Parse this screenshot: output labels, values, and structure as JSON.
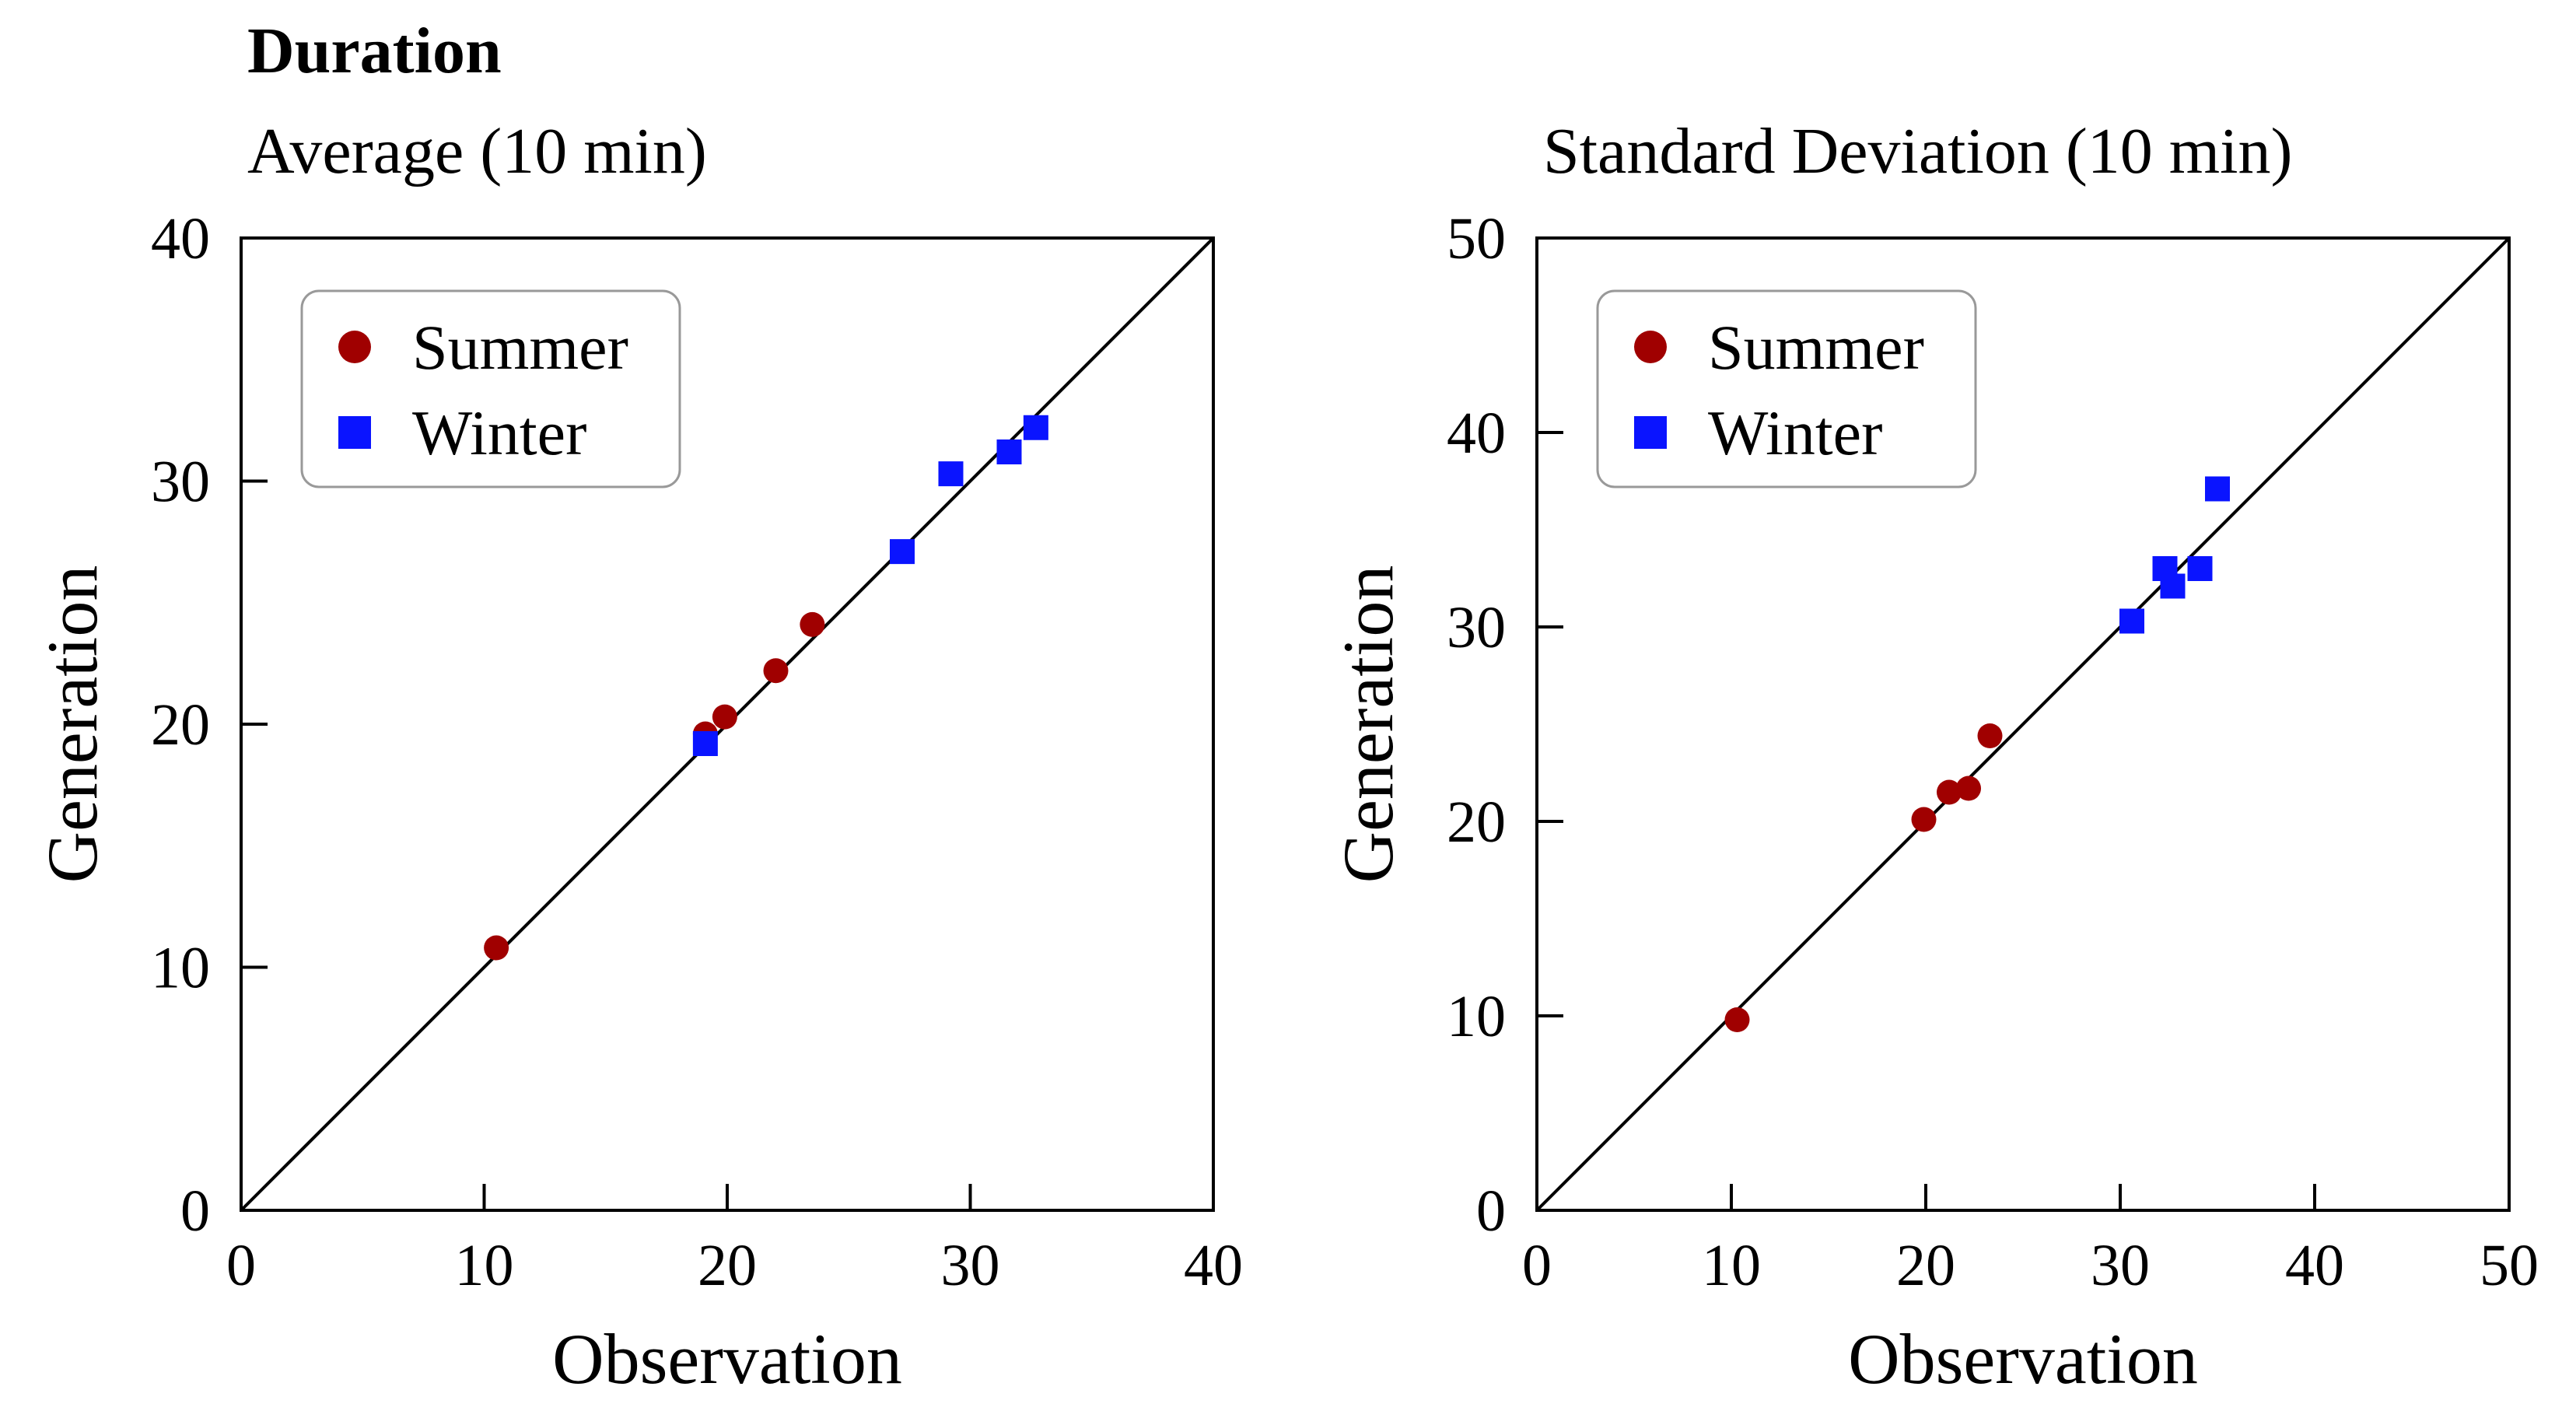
{
  "figure": {
    "heading": "Duration"
  },
  "chart_data": [
    {
      "type": "scatter",
      "title": "Average (10 min)",
      "xlabel": "Observation",
      "ylabel": "Generation",
      "xlim": [
        0,
        40
      ],
      "ylim": [
        0,
        40
      ],
      "xticks": [
        0,
        10,
        20,
        30,
        40
      ],
      "yticks": [
        0,
        10,
        20,
        30,
        40
      ],
      "reference_line": "y = x",
      "grid": false,
      "legend_position": "top-left",
      "series": [
        {
          "name": "Summer",
          "marker": "circle",
          "color": "#A00000",
          "points": [
            [
              10.5,
              10.8
            ],
            [
              19.1,
              19.6
            ],
            [
              19.9,
              20.3
            ],
            [
              22.0,
              22.2
            ],
            [
              23.5,
              24.1
            ]
          ]
        },
        {
          "name": "Winter",
          "marker": "square",
          "color": "#0A14FF",
          "points": [
            [
              19.1,
              19.2
            ],
            [
              27.2,
              27.1
            ],
            [
              29.2,
              30.3
            ],
            [
              31.6,
              31.2
            ],
            [
              32.7,
              32.2
            ]
          ]
        }
      ]
    },
    {
      "type": "scatter",
      "title": "Standard Deviation (10 min)",
      "xlabel": "Observation",
      "ylabel": "Generation",
      "xlim": [
        0,
        50
      ],
      "ylim": [
        0,
        50
      ],
      "xticks": [
        0,
        10,
        20,
        30,
        40,
        50
      ],
      "yticks": [
        0,
        10,
        20,
        30,
        40,
        50
      ],
      "reference_line": "y = x",
      "grid": false,
      "legend_position": "top-left",
      "series": [
        {
          "name": "Summer",
          "marker": "circle",
          "color": "#A00000",
          "points": [
            [
              10.3,
              9.8
            ],
            [
              19.9,
              20.1
            ],
            [
              21.2,
              21.5
            ],
            [
              22.2,
              21.7
            ],
            [
              23.3,
              24.4
            ]
          ]
        },
        {
          "name": "Winter",
          "marker": "square",
          "color": "#0A14FF",
          "points": [
            [
              30.6,
              30.3
            ],
            [
              32.3,
              33.0
            ],
            [
              32.7,
              32.1
            ],
            [
              34.1,
              33.0
            ],
            [
              35.0,
              37.1
            ]
          ]
        }
      ]
    }
  ]
}
